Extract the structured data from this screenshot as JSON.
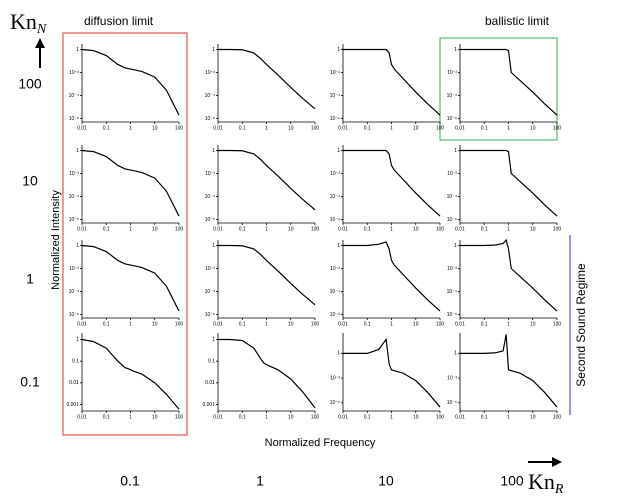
{
  "figure": {
    "y_label": "Normalized Intensity",
    "x_label": "Normalized Frequency",
    "row_axis": {
      "base": "Kn",
      "sub": "N"
    },
    "col_axis": {
      "base": "Kn",
      "sub": "R"
    },
    "row_labels": [
      "100",
      "10",
      "1",
      "0.1"
    ],
    "col_labels": [
      "0.1",
      "1",
      "10",
      "100"
    ],
    "annotations": [
      "diffusion limit",
      "ballistic limit",
      "Second Sound Regime"
    ]
  },
  "chart_data": [
    {
      "type": "line",
      "log_scale": true,
      "xlim": [
        0.01,
        100
      ],
      "ylim": [
        5e-07,
        3
      ],
      "xticks": [
        0.01,
        0.1,
        1,
        10,
        100
      ],
      "yticks": [
        1,
        {
          "value": 0.01,
          "label": "10⁻²"
        },
        {
          "value": 0.0001,
          "label": "10⁻⁴"
        },
        {
          "value": 1e-06,
          "label": "10⁻⁶"
        }
      ],
      "x": [
        0.01,
        0.03,
        0.1,
        0.3,
        0.6,
        0.8,
        1,
        1.3,
        3,
        10,
        30,
        100
      ],
      "values": [
        1,
        0.8,
        0.3,
        0.05,
        0.025,
        0.022,
        0.02,
        0.018,
        0.012,
        0.004,
        0.0003,
        2e-06
      ]
    },
    {
      "type": "line",
      "log_scale": true,
      "xlim": [
        0.01,
        100
      ],
      "ylim": [
        5e-07,
        3
      ],
      "xticks": [
        0.01,
        0.1,
        1,
        10,
        100
      ],
      "yticks": [
        1,
        {
          "value": 0.01,
          "label": "10⁻²"
        },
        {
          "value": 0.0001,
          "label": "10⁻⁴"
        },
        {
          "value": 1e-06,
          "label": "10⁻⁶"
        }
      ],
      "x": [
        0.01,
        0.03,
        0.1,
        0.3,
        0.6,
        0.8,
        1,
        1.3,
        3,
        10,
        30,
        100
      ],
      "values": [
        1,
        1,
        0.95,
        0.5,
        0.15,
        0.08,
        0.05,
        0.03,
        0.006,
        0.0005,
        6e-05,
        7e-06
      ]
    },
    {
      "type": "line",
      "log_scale": true,
      "xlim": [
        0.01,
        100
      ],
      "ylim": [
        5e-07,
        3
      ],
      "xticks": [
        0.01,
        0.1,
        1,
        10,
        100
      ],
      "yticks": [
        1,
        {
          "value": 0.01,
          "label": "10⁻²"
        },
        {
          "value": 0.0001,
          "label": "10⁻⁴"
        },
        {
          "value": 1e-06,
          "label": "10⁻⁶"
        }
      ],
      "x": [
        0.01,
        0.03,
        0.1,
        0.3,
        0.6,
        0.8,
        1,
        1.3,
        3,
        10,
        30,
        100
      ],
      "values": [
        1,
        1,
        1,
        1,
        1,
        0.5,
        0.05,
        0.02,
        0.003,
        0.0002,
        2e-05,
        2e-06
      ]
    },
    {
      "type": "line",
      "log_scale": true,
      "xlim": [
        0.01,
        100
      ],
      "ylim": [
        5e-07,
        3
      ],
      "xticks": [
        0.01,
        0.1,
        1,
        10,
        100
      ],
      "yticks": [
        1,
        {
          "value": 0.01,
          "label": "10⁻²"
        },
        {
          "value": 0.0001,
          "label": "10⁻⁴"
        },
        {
          "value": 1e-06,
          "label": "10⁻⁶"
        }
      ],
      "x": [
        0.01,
        0.03,
        0.1,
        0.3,
        0.6,
        0.8,
        1,
        1.3,
        3,
        10,
        30,
        100
      ],
      "values": [
        1,
        1,
        1,
        1,
        1,
        1,
        0.8,
        0.01,
        0.002,
        0.0002,
        2e-05,
        2e-06
      ]
    },
    {
      "type": "line",
      "log_scale": true,
      "xlim": [
        0.01,
        100
      ],
      "ylim": [
        5e-07,
        3
      ],
      "xticks": [
        0.01,
        0.1,
        1,
        10,
        100
      ],
      "yticks": [
        1,
        {
          "value": 0.01,
          "label": "10⁻²"
        },
        {
          "value": 0.0001,
          "label": "10⁻⁴"
        },
        {
          "value": 1e-06,
          "label": "10⁻⁶"
        }
      ],
      "x": [
        0.01,
        0.03,
        0.1,
        0.3,
        0.6,
        0.8,
        1,
        1.3,
        3,
        10,
        30,
        100
      ],
      "values": [
        1,
        0.8,
        0.3,
        0.05,
        0.025,
        0.022,
        0.02,
        0.018,
        0.012,
        0.004,
        0.0003,
        2e-06
      ]
    },
    {
      "type": "line",
      "log_scale": true,
      "xlim": [
        0.01,
        100
      ],
      "ylim": [
        5e-07,
        3
      ],
      "xticks": [
        0.01,
        0.1,
        1,
        10,
        100
      ],
      "yticks": [
        1,
        {
          "value": 0.01,
          "label": "10⁻²"
        },
        {
          "value": 0.0001,
          "label": "10⁻⁴"
        },
        {
          "value": 1e-06,
          "label": "10⁻⁶"
        }
      ],
      "x": [
        0.01,
        0.03,
        0.1,
        0.3,
        0.6,
        0.8,
        1,
        1.3,
        3,
        10,
        30,
        100
      ],
      "values": [
        1,
        1,
        0.95,
        0.5,
        0.15,
        0.08,
        0.05,
        0.03,
        0.006,
        0.0005,
        6e-05,
        7e-06
      ]
    },
    {
      "type": "line",
      "log_scale": true,
      "xlim": [
        0.01,
        100
      ],
      "ylim": [
        5e-07,
        3
      ],
      "xticks": [
        0.01,
        0.1,
        1,
        10,
        100
      ],
      "yticks": [
        1,
        {
          "value": 0.01,
          "label": "10⁻²"
        },
        {
          "value": 0.0001,
          "label": "10⁻⁴"
        },
        {
          "value": 1e-06,
          "label": "10⁻⁶"
        }
      ],
      "x": [
        0.01,
        0.03,
        0.1,
        0.3,
        0.6,
        0.8,
        1,
        1.3,
        3,
        10,
        30,
        100
      ],
      "values": [
        1,
        1,
        1,
        1,
        1,
        0.5,
        0.05,
        0.02,
        0.003,
        0.0002,
        2e-05,
        2e-06
      ]
    },
    {
      "type": "line",
      "log_scale": true,
      "xlim": [
        0.01,
        100
      ],
      "ylim": [
        5e-07,
        3
      ],
      "xticks": [
        0.01,
        0.1,
        1,
        10,
        100
      ],
      "yticks": [
        1,
        {
          "value": 0.01,
          "label": "10⁻²"
        },
        {
          "value": 0.0001,
          "label": "10⁻⁴"
        },
        {
          "value": 1e-06,
          "label": "10⁻⁶"
        }
      ],
      "x": [
        0.01,
        0.03,
        0.1,
        0.3,
        0.6,
        0.8,
        1,
        1.3,
        3,
        10,
        30,
        100
      ],
      "values": [
        1,
        1,
        1,
        1,
        1,
        1,
        0.8,
        0.01,
        0.002,
        0.0002,
        2e-05,
        2e-06
      ]
    },
    {
      "type": "line",
      "log_scale": true,
      "xlim": [
        0.01,
        100
      ],
      "ylim": [
        5e-07,
        3
      ],
      "xticks": [
        0.01,
        0.1,
        1,
        10,
        100
      ],
      "yticks": [
        1,
        {
          "value": 0.01,
          "label": "10⁻²"
        },
        {
          "value": 0.0001,
          "label": "10⁻⁴"
        },
        {
          "value": 1e-06,
          "label": "10⁻⁶"
        }
      ],
      "x": [
        0.01,
        0.03,
        0.1,
        0.3,
        0.6,
        0.8,
        1,
        1.3,
        3,
        10,
        30,
        100
      ],
      "values": [
        1,
        0.8,
        0.3,
        0.05,
        0.025,
        0.022,
        0.02,
        0.018,
        0.012,
        0.004,
        0.0003,
        2e-06
      ]
    },
    {
      "type": "line",
      "log_scale": true,
      "xlim": [
        0.01,
        100
      ],
      "ylim": [
        5e-07,
        3
      ],
      "xticks": [
        0.01,
        0.1,
        1,
        10,
        100
      ],
      "yticks": [
        1,
        {
          "value": 0.01,
          "label": "10⁻²"
        },
        {
          "value": 0.0001,
          "label": "10⁻⁴"
        },
        {
          "value": 1e-06,
          "label": "10⁻⁶"
        }
      ],
      "x": [
        0.01,
        0.03,
        0.1,
        0.3,
        0.6,
        0.8,
        1,
        1.3,
        3,
        10,
        30,
        100
      ],
      "values": [
        1,
        1,
        0.95,
        0.5,
        0.15,
        0.08,
        0.05,
        0.03,
        0.006,
        0.0005,
        6e-05,
        7e-06
      ]
    },
    {
      "type": "line",
      "log_scale": true,
      "xlim": [
        0.01,
        100
      ],
      "ylim": [
        5e-07,
        3
      ],
      "xticks": [
        0.01,
        0.1,
        1,
        10,
        100
      ],
      "yticks": [
        1,
        {
          "value": 0.01,
          "label": "10⁻²"
        },
        {
          "value": 0.0001,
          "label": "10⁻⁴"
        },
        {
          "value": 1e-06,
          "label": "10⁻⁶"
        }
      ],
      "x": [
        0.01,
        0.03,
        0.1,
        0.3,
        0.6,
        0.8,
        1,
        1.3,
        3,
        10,
        30,
        100
      ],
      "values": [
        1,
        1,
        1,
        1.3,
        2,
        0.5,
        0.05,
        0.02,
        0.003,
        0.0002,
        2e-05,
        2e-06
      ]
    },
    {
      "type": "line",
      "log_scale": true,
      "xlim": [
        0.01,
        100
      ],
      "ylim": [
        5e-07,
        3
      ],
      "xticks": [
        0.01,
        0.1,
        1,
        10,
        100
      ],
      "yticks": [
        1,
        {
          "value": 0.01,
          "label": "10⁻²"
        },
        {
          "value": 0.0001,
          "label": "10⁻⁴"
        },
        {
          "value": 1e-06,
          "label": "10⁻⁶"
        }
      ],
      "x": [
        0.01,
        0.03,
        0.1,
        0.3,
        0.6,
        0.8,
        1,
        1.3,
        3,
        10,
        30,
        100
      ],
      "values": [
        1,
        1,
        1,
        1.1,
        1.5,
        3,
        0.5,
        0.01,
        0.002,
        0.0002,
        2e-05,
        2e-06
      ]
    },
    {
      "type": "line",
      "log_scale": true,
      "xlim": [
        0.01,
        100
      ],
      "ylim": [
        0.0005,
        2
      ],
      "xticks": [
        0.01,
        0.1,
        1,
        10,
        100
      ],
      "yticks": [
        1,
        0.1,
        0.01,
        0.001
      ],
      "x": [
        0.01,
        0.03,
        0.1,
        0.3,
        0.6,
        0.8,
        1,
        1.3,
        3,
        10,
        30,
        100
      ],
      "values": [
        1,
        0.8,
        0.4,
        0.1,
        0.05,
        0.045,
        0.04,
        0.035,
        0.025,
        0.01,
        0.003,
        0.0006
      ]
    },
    {
      "type": "line",
      "log_scale": true,
      "xlim": [
        0.01,
        100
      ],
      "ylim": [
        0.0005,
        2
      ],
      "xticks": [
        0.01,
        0.1,
        1,
        10,
        100
      ],
      "yticks": [
        1,
        0.1,
        0.01,
        0.001
      ],
      "x": [
        0.01,
        0.03,
        0.1,
        0.3,
        0.6,
        0.8,
        1,
        1.3,
        3,
        10,
        30,
        100
      ],
      "values": [
        1,
        1,
        0.9,
        0.4,
        0.12,
        0.08,
        0.07,
        0.06,
        0.04,
        0.015,
        0.004,
        0.0007
      ]
    },
    {
      "type": "line",
      "log_scale": true,
      "xlim": [
        0.01,
        100
      ],
      "ylim": [
        1e-07,
        300
      ],
      "xticks": [
        0.01,
        0.1,
        1,
        10,
        100
      ],
      "yticks": [
        1,
        {
          "value": 0.001,
          "label": "10⁻³"
        },
        {
          "value": 1e-06,
          "label": "10⁻⁶"
        }
      ],
      "x": [
        0.01,
        0.03,
        0.1,
        0.3,
        0.6,
        0.8,
        1,
        1.3,
        3,
        10,
        30,
        100
      ],
      "values": [
        1,
        1,
        1,
        3,
        50,
        0.05,
        0.01,
        0.008,
        0.004,
        0.0005,
        2e-05,
        3e-07
      ]
    },
    {
      "type": "line",
      "log_scale": true,
      "xlim": [
        0.01,
        100
      ],
      "ylim": [
        1e-07,
        300
      ],
      "xticks": [
        0.01,
        0.1,
        1,
        10,
        100
      ],
      "yticks": [
        1,
        {
          "value": 0.001,
          "label": "10⁻³"
        },
        {
          "value": 1e-06,
          "label": "10⁻⁶"
        }
      ],
      "x": [
        0.01,
        0.03,
        0.1,
        0.3,
        0.6,
        0.8,
        1,
        1.3,
        3,
        10,
        30,
        100
      ],
      "values": [
        1,
        1,
        1,
        1.2,
        2,
        200,
        0.01,
        0.008,
        0.004,
        0.0005,
        2e-05,
        3e-07
      ]
    }
  ]
}
